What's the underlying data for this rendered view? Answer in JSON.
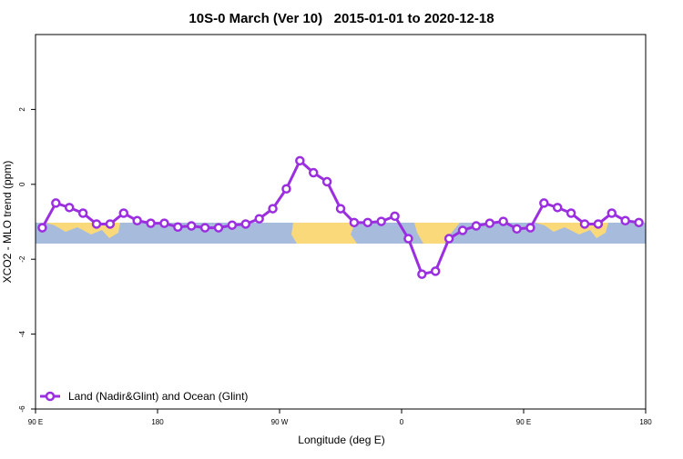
{
  "chart_data": {
    "type": "line",
    "title": "10S-0 March (Ver 10)   2015-01-01 to 2020-12-18",
    "x_label": "Longitude (deg E)",
    "y_label": "XCO2 - MLO trend (ppm)",
    "x": [
      95,
      105,
      115,
      125,
      135,
      145,
      155,
      165,
      175,
      185,
      195,
      205,
      215,
      225,
      235,
      245,
      255,
      265,
      275,
      285,
      295,
      305,
      315,
      325,
      335,
      345,
      355,
      365,
      375,
      385,
      395,
      405,
      415,
      425,
      435,
      445,
      455,
      465,
      475,
      485,
      495,
      505,
      515,
      525,
      535
    ],
    "series": [
      {
        "name": "Land (Nadir&Glint) and Ocean (Glint)",
        "color": "#9b2fe0",
        "values": [
          -1.16,
          -0.5,
          -0.62,
          -0.77,
          -1.06,
          -1.06,
          -0.77,
          -0.97,
          -1.04,
          -1.04,
          -1.14,
          -1.11,
          -1.16,
          -1.16,
          -1.09,
          -1.06,
          -0.92,
          -0.65,
          -0.12,
          0.63,
          0.31,
          0.07,
          -0.65,
          -1.02,
          -1.02,
          -0.99,
          -0.85,
          -1.45,
          -2.4,
          -2.32,
          -1.45,
          -1.23,
          -1.11,
          -1.04,
          -0.99,
          -1.19,
          -1.16,
          -0.5,
          -0.62,
          -0.77,
          -1.06,
          -1.06,
          -0.77,
          -0.97,
          -1.02
        ]
      }
    ],
    "xlim": [
      90,
      540
    ],
    "xticks": [
      {
        "value": 90,
        "label": "90 E"
      },
      180,
      {
        "value": 270,
        "label": "90 W"
      },
      {
        "value": 360,
        "label": "0"
      },
      {
        "value": 450,
        "label": "90 E"
      },
      {
        "value": 540,
        "label": "180"
      }
    ],
    "ylim": [
      -6,
      4
    ],
    "yticks": [
      -6,
      -4,
      -2,
      0,
      2
    ],
    "legend": "bottomleft"
  }
}
